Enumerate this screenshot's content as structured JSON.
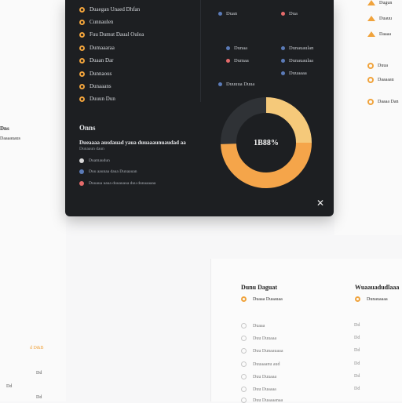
{
  "colors": {
    "accent": "#f0a33c",
    "dark": "#1d1f22",
    "donut_light": "#f5c97a",
    "donut_orange": "#f5a54a",
    "donut_dark": "#2f3236",
    "blue": "#5b7bb8",
    "red": "#e56b6b"
  },
  "modal": {
    "options": [
      {
        "label": "Duaegan Unaed Dhfan"
      },
      {
        "label": "Cunnaulen"
      },
      {
        "label": "Fuu Dumut Daual Ouloa"
      },
      {
        "label": "Dumaaaraa"
      },
      {
        "label": "Duaan Dar"
      },
      {
        "label": "Dunnaous"
      },
      {
        "label": "Dunaaans"
      },
      {
        "label": "Duuun Dun"
      }
    ],
    "right_items": [
      {
        "label": "Duan",
        "color": "#5b7bb8"
      },
      {
        "label": "Dua",
        "color": "#e56b6b"
      },
      {
        "label": "Dunaa",
        "color": "#5b7bb8"
      },
      {
        "label": "Dunauaulan",
        "color": "#5b7bb8"
      },
      {
        "label": "Dumaa",
        "color": "#e56b6b"
      },
      {
        "label": "Dunauaulaa",
        "color": "#5b7bb8"
      },
      {
        "label": "Duuuua Duua",
        "color": "#5b7bb8"
      },
      {
        "label": "Duuaaaa",
        "color": "#5b7bb8"
      }
    ],
    "section_title": "Onns",
    "section_subtitle": "Dueaaaa ausdauad yaua duuaaaunuaudad aa",
    "section_subtitle2": "Dunaaun daun",
    "legend": [
      {
        "label": "Duamaudun",
        "color": "#d9d9d9"
      },
      {
        "label": "Duu aaunaa daua Dunaauan",
        "color": "#5b7bb8"
      },
      {
        "label": "Duuaua uaua duuauaua duu dunaaaaaa",
        "color": "#e56b6b"
      }
    ],
    "donut_center_label": "1B88%",
    "donut_share": 0.62,
    "close_label": "✕"
  },
  "left_notes": [
    "Dns",
    "Daaaauaus"
  ],
  "right_texts": [
    "Dugun",
    "Duauu",
    "Daaaa",
    "Duua",
    "Daaaaau",
    "Daaaa Dan"
  ],
  "bottom_panel": {
    "col1_title": "Dunu Daguat",
    "col1_selected": "Duaaa Duaauaa",
    "col2_title": "Wuaauadudlaaa",
    "col2_selected": "Dunauaaaa",
    "rows": [
      {
        "label": "Duaaa",
        "value": "Dd"
      },
      {
        "label": "Duu Duuaaa",
        "value": "Dd"
      },
      {
        "label": "Duu Dunaauaaa",
        "value": "Dd"
      },
      {
        "label": "Duuaaanu aud",
        "value": "Dd"
      },
      {
        "label": "Duu Duuaaa",
        "value": "Dd"
      },
      {
        "label": "Duu Duaaaa",
        "value": "Dd"
      },
      {
        "label": "Duu Duaaaanaa",
        "value": "Dd"
      }
    ]
  },
  "bottom_left": {
    "label1": "d D&B",
    "label2": "Dd",
    "label3": "Dd",
    "label4": "Dd"
  }
}
